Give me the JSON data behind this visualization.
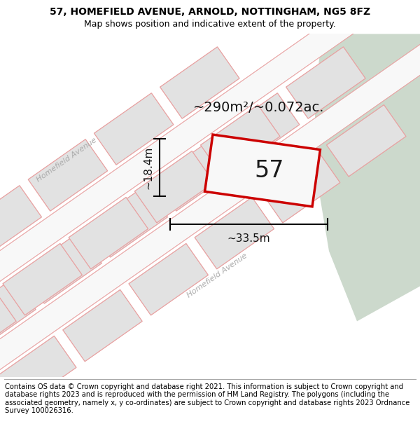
{
  "title": "57, HOMEFIELD AVENUE, ARNOLD, NOTTINGHAM, NG5 8FZ",
  "subtitle": "Map shows position and indicative extent of the property.",
  "footer": "Contains OS data © Crown copyright and database right 2021. This information is subject to Crown copyright and database rights 2023 and is reproduced with the permission of HM Land Registry. The polygons (including the associated geometry, namely x, y co-ordinates) are subject to Crown copyright and database rights 2023 Ordnance Survey 100026316.",
  "area_label": "~290m²/~0.072ac.",
  "width_label": "~33.5m",
  "height_label": "~18.4m",
  "number_label": "57",
  "bg_color": "#ffffff",
  "map_bg_color": "#efefef",
  "green_color": "#ccd9cc",
  "block_fill": "#e2e2e2",
  "block_edge": "#e8a0a0",
  "road_fill": "#f8f8f8",
  "road_edge": "#e8a0a0",
  "prop_fill": "#f8f8f8",
  "prop_edge": "#cc0000",
  "title_fontsize": 10,
  "subtitle_fontsize": 9,
  "footer_fontsize": 7.2,
  "area_fontsize": 14,
  "number_fontsize": 24,
  "dim_fontsize": 11,
  "street_fontsize": 8
}
